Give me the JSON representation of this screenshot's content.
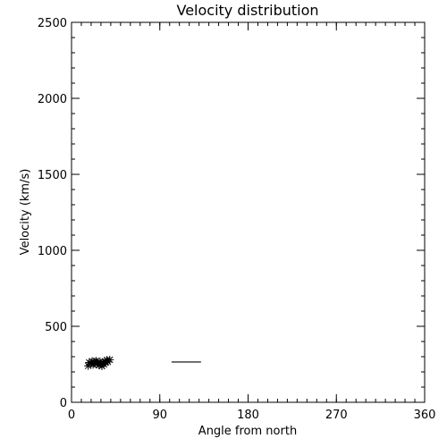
{
  "chart_data": {
    "type": "scatter",
    "title": "Velocity distribution",
    "xlabel": "Angle from north",
    "ylabel": "Velocity (km/s)",
    "xlim": [
      0,
      360
    ],
    "ylim": [
      0,
      2500
    ],
    "xticks": [
      0,
      90,
      180,
      270,
      360
    ],
    "yticks": [
      0,
      500,
      1000,
      1500,
      2000,
      2500
    ],
    "xtick_labels": [
      "0",
      "90",
      "180",
      "270",
      "360"
    ],
    "ytick_labels": [
      "0",
      "500",
      "1000",
      "1500",
      "2000",
      "2500"
    ],
    "x_minor_step": 10,
    "y_minor_step": 100,
    "grid": false,
    "marker": "asterisk",
    "color": "#000000",
    "points": [
      {
        "x": 17,
        "y": 240
      },
      {
        "x": 18,
        "y": 262
      },
      {
        "x": 20,
        "y": 255
      },
      {
        "x": 21,
        "y": 270
      },
      {
        "x": 22,
        "y": 248
      },
      {
        "x": 23,
        "y": 265
      },
      {
        "x": 24,
        "y": 258
      },
      {
        "x": 25,
        "y": 272
      },
      {
        "x": 26,
        "y": 252
      },
      {
        "x": 27,
        "y": 260
      },
      {
        "x": 28,
        "y": 244
      },
      {
        "x": 29,
        "y": 268
      },
      {
        "x": 30,
        "y": 256
      },
      {
        "x": 31,
        "y": 238
      },
      {
        "x": 32,
        "y": 262
      },
      {
        "x": 33,
        "y": 250
      },
      {
        "x": 34,
        "y": 270
      },
      {
        "x": 35,
        "y": 264
      },
      {
        "x": 36,
        "y": 278
      },
      {
        "x": 37,
        "y": 266
      },
      {
        "x": 39,
        "y": 280
      }
    ],
    "reference_line": {
      "x": [
        102,
        132
      ],
      "y": 265
    }
  }
}
